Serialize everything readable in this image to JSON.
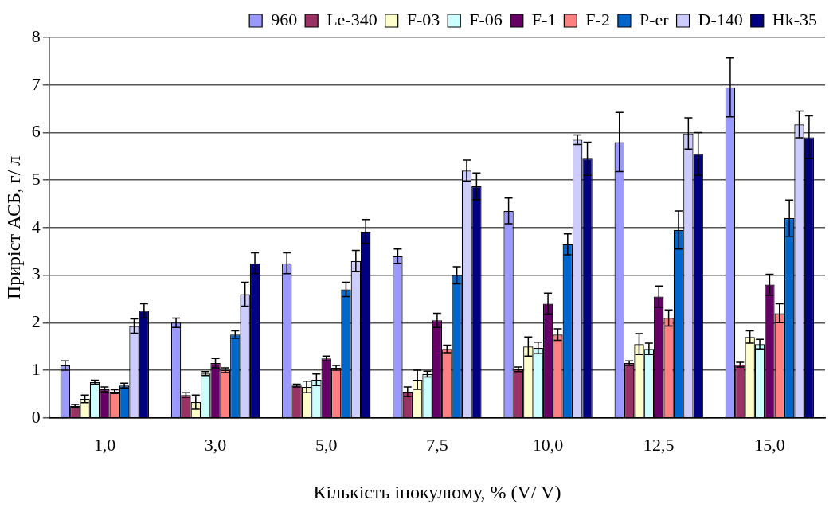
{
  "chart_data": {
    "type": "bar",
    "xlabel": "Кількість інокулюму, % (V/ V)",
    "ylabel": "Приріст АСБ, г/ л",
    "categories": [
      "1,0",
      "3,0",
      "5,0",
      "7,5",
      "10,0",
      "12,5",
      "15,0"
    ],
    "series": [
      {
        "name": "960",
        "color": "#9999ff",
        "values": [
          1.1,
          2.0,
          3.25,
          3.4,
          4.35,
          5.8,
          6.95
        ],
        "errors": [
          0.1,
          0.1,
          0.22,
          0.15,
          0.27,
          0.62,
          0.62
        ]
      },
      {
        "name": "Le-340",
        "color": "#993366",
        "values": [
          0.25,
          0.48,
          0.68,
          0.55,
          1.02,
          1.15,
          1.12
        ],
        "errors": [
          0.03,
          0.05,
          0.03,
          0.1,
          0.05,
          0.05,
          0.05
        ]
      },
      {
        "name": "F-03",
        "color": "#ffffcc",
        "values": [
          0.4,
          0.33,
          0.65,
          0.8,
          1.5,
          1.55,
          1.7
        ],
        "errors": [
          0.08,
          0.15,
          0.12,
          0.2,
          0.2,
          0.22,
          0.13
        ]
      },
      {
        "name": "F-06",
        "color": "#ccffff",
        "values": [
          0.75,
          0.93,
          0.8,
          0.92,
          1.47,
          1.45,
          1.55
        ],
        "errors": [
          0.04,
          0.04,
          0.12,
          0.06,
          0.12,
          0.12,
          0.1
        ]
      },
      {
        "name": "F-1",
        "color": "#660066",
        "values": [
          0.6,
          1.15,
          1.25,
          2.05,
          2.4,
          2.55,
          2.8
        ],
        "errors": [
          0.05,
          0.1,
          0.05,
          0.15,
          0.22,
          0.22,
          0.22
        ]
      },
      {
        "name": "F-2",
        "color": "#ff8080",
        "values": [
          0.55,
          1.0,
          1.05,
          1.45,
          1.75,
          2.1,
          2.2
        ],
        "errors": [
          0.04,
          0.05,
          0.05,
          0.08,
          0.12,
          0.17,
          0.2
        ]
      },
      {
        "name": "P-er",
        "color": "#0066cc",
        "values": [
          0.68,
          1.75,
          2.7,
          3.0,
          3.65,
          3.95,
          4.2
        ],
        "errors": [
          0.05,
          0.08,
          0.15,
          0.18,
          0.22,
          0.4,
          0.38
        ]
      },
      {
        "name": "D-140",
        "color": "#ccccff",
        "values": [
          1.93,
          2.6,
          3.3,
          5.2,
          5.85,
          5.98,
          6.17
        ],
        "errors": [
          0.15,
          0.25,
          0.22,
          0.22,
          0.1,
          0.33,
          0.28
        ]
      },
      {
        "name": "Hk-35",
        "color": "#000080",
        "values": [
          2.25,
          3.25,
          3.92,
          4.87,
          5.45,
          5.55,
          5.9
        ],
        "errors": [
          0.15,
          0.22,
          0.25,
          0.28,
          0.35,
          0.45,
          0.45
        ]
      }
    ],
    "ylim": [
      0,
      8
    ],
    "yticks": [
      0,
      1,
      2,
      3,
      4,
      5,
      6,
      7,
      8
    ],
    "grid": "y",
    "legend": "top right"
  }
}
